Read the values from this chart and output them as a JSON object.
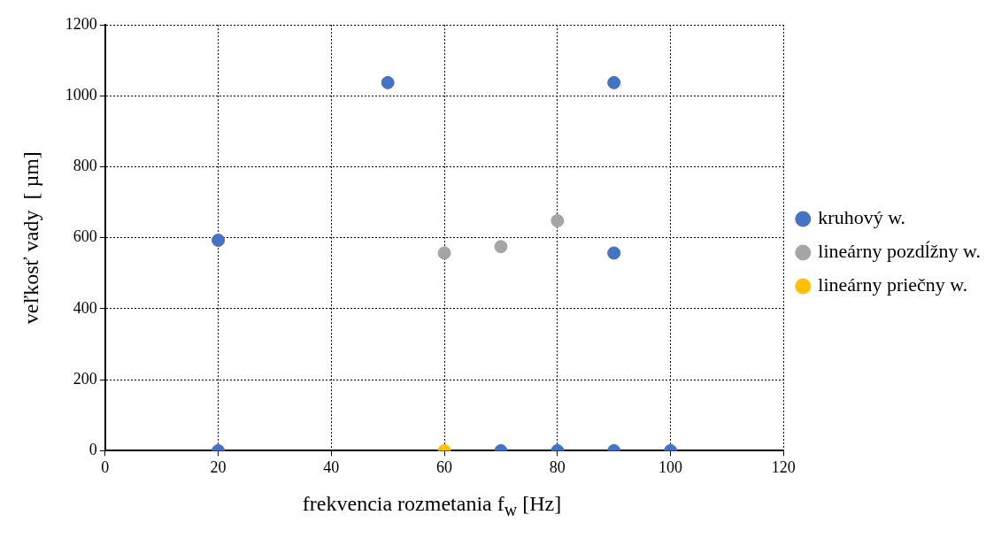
{
  "chart_data": {
    "type": "scatter",
    "xlabel": "frekvencia rozmetania f$_{w}$ [Hz]",
    "ylabel": "veľkosť vady  [ µm]",
    "series": [
      {
        "name": "kruhový w.",
        "color": "#4472c4",
        "x": [
          20,
          50,
          90,
          90,
          20,
          70,
          80,
          90,
          100
        ],
        "values": [
          593,
          1037,
          1037,
          557,
          0,
          0,
          0,
          0,
          0
        ]
      },
      {
        "name": "lineárny pozdĺžny w.",
        "color": "#a5a5a5",
        "x": [
          60,
          70,
          80
        ],
        "values": [
          557,
          575,
          648
        ]
      },
      {
        "name": "lineárny priečny w.",
        "color": "#ffc000",
        "x": [
          60
        ],
        "values": [
          0
        ]
      }
    ],
    "xlim": [
      0,
      120
    ],
    "xticks": [
      0,
      20,
      40,
      60,
      80,
      100,
      120
    ],
    "ylim": [
      0,
      1200
    ],
    "yticks": [
      0,
      200,
      400,
      600,
      800,
      1000,
      1200
    ],
    "grid": true,
    "legend": "right",
    "marker": "circle"
  }
}
